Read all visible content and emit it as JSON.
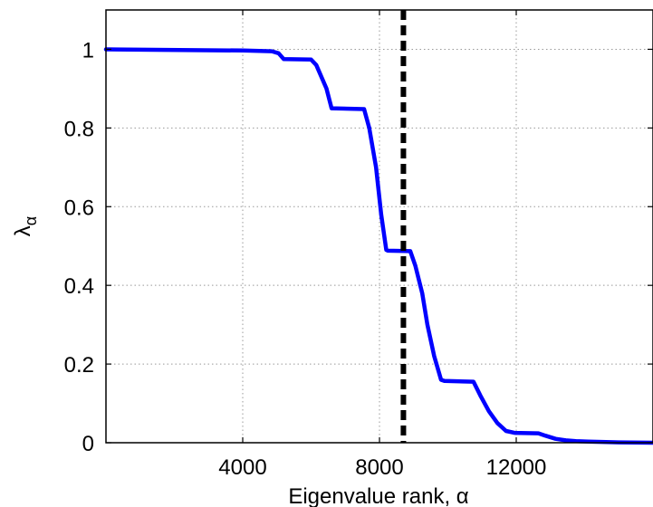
{
  "chart_data": {
    "type": "line",
    "title": "",
    "xlabel": "Eigenvalue rank, α",
    "ylabel_main": "λ",
    "ylabel_sub": "α",
    "xlim": [
      0,
      16000
    ],
    "ylim": [
      0,
      1.1
    ],
    "grid": true,
    "x_ticks": [
      4000,
      8000,
      12000
    ],
    "x_tick_labels": [
      "4000",
      "8000",
      "12000"
    ],
    "y_ticks": [
      0,
      0.2,
      0.4,
      0.6,
      0.8,
      1.0
    ],
    "y_tick_labels": [
      "0",
      "0.2",
      "0.4",
      "0.6",
      "0.8",
      "1"
    ],
    "reference_line": {
      "x": 8700,
      "style": "dashed"
    },
    "series": [
      {
        "color": "#0000ff",
        "x": [
          0,
          4000,
          4850,
          5050,
          5200,
          6000,
          6150,
          6450,
          6600,
          7550,
          7700,
          7900,
          8050,
          8200,
          8250,
          8900,
          9050,
          9250,
          9400,
          9600,
          9800,
          9900,
          10750,
          10950,
          11200,
          11450,
          11700,
          11950,
          12650,
          12850,
          13150,
          13450,
          13750,
          14100,
          14500,
          15000,
          16000
        ],
        "y": [
          1.0,
          0.997,
          0.995,
          0.99,
          0.975,
          0.974,
          0.96,
          0.9,
          0.85,
          0.848,
          0.8,
          0.7,
          0.58,
          0.49,
          0.488,
          0.487,
          0.45,
          0.38,
          0.3,
          0.22,
          0.16,
          0.157,
          0.155,
          0.12,
          0.08,
          0.05,
          0.03,
          0.025,
          0.024,
          0.018,
          0.01,
          0.006,
          0.004,
          0.003,
          0.002,
          0.001,
          0.0
        ]
      }
    ]
  }
}
